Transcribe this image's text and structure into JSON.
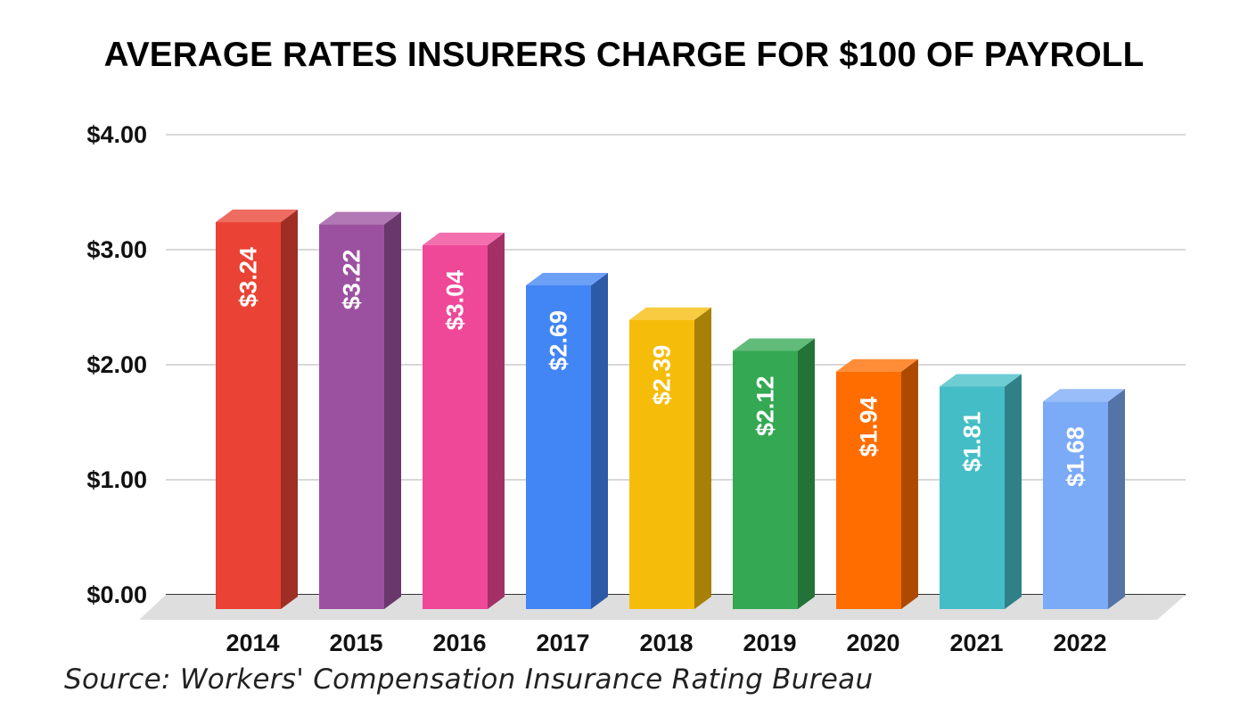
{
  "chart_data": {
    "type": "bar",
    "title": "AVERAGE RATES INSURERS CHARGE FOR $100 OF PAYROLL",
    "categories": [
      "2014",
      "2015",
      "2016",
      "2017",
      "2018",
      "2019",
      "2020",
      "2021",
      "2022"
    ],
    "values": [
      3.24,
      3.22,
      3.04,
      2.69,
      2.39,
      2.12,
      1.94,
      1.81,
      1.68
    ],
    "data_labels": [
      "$3.24",
      "$3.22",
      "$3.04",
      "$2.69",
      "$2.39",
      "$2.12",
      "$1.94",
      "$1.81",
      "$1.68"
    ],
    "bar_colors": [
      "#ea4335",
      "#9c51a0",
      "#ef4899",
      "#4285f4",
      "#f6bc0a",
      "#34a853",
      "#ff6d00",
      "#45bdc6",
      "#7baaf7"
    ],
    "yticks": [
      0,
      1,
      2,
      3,
      4
    ],
    "ytick_labels": [
      "$0.00",
      "$1.00",
      "$2.00",
      "$3.00",
      "$4.00"
    ],
    "ylim": [
      0,
      4
    ],
    "xlabel": "",
    "ylabel": "",
    "grid": true,
    "legend": "none",
    "style": "3d-bars"
  },
  "source": "Source: Workers' Compensation Insurance Rating Bureau"
}
